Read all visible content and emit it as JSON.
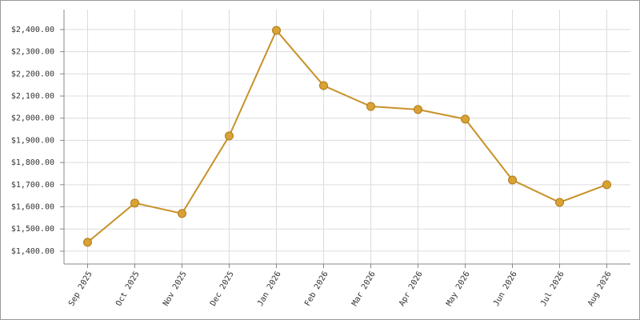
{
  "chart_data": {
    "type": "line",
    "categories": [
      "Sep 2025",
      "Oct 2025",
      "Nov 2025",
      "Dec 2025",
      "Jan 2026",
      "Feb 2026",
      "Mar 2026",
      "Apr 2026",
      "May 2026",
      "Jun 2026",
      "Jul 2026",
      "Aug 2026"
    ],
    "series": [
      {
        "color": "#c8922a",
        "values": [
          1440,
          1617,
          1570,
          1920,
          2396,
          2147,
          2053,
          2039,
          1996,
          1721,
          1620,
          1700
        ]
      }
    ],
    "ylim": [
      1342,
      2490
    ],
    "yticks": [
      {
        "value": 1400,
        "label": "$1,400.00"
      },
      {
        "value": 1500,
        "label": "$1,500.00"
      },
      {
        "value": 1600,
        "label": "$1,600.00"
      },
      {
        "value": 1700,
        "label": "$1,700.00"
      },
      {
        "value": 1800,
        "label": "$1,800.00"
      },
      {
        "value": 1900,
        "label": "$1,900.00"
      },
      {
        "value": 2000,
        "label": "$2,000.00"
      },
      {
        "value": 2100,
        "label": "$2,100.00"
      },
      {
        "value": 2200,
        "label": "$2,200.00"
      },
      {
        "value": 2300,
        "label": "$2,300.00"
      },
      {
        "value": 2400,
        "label": "$2,400.00"
      }
    ],
    "grid": true
  }
}
